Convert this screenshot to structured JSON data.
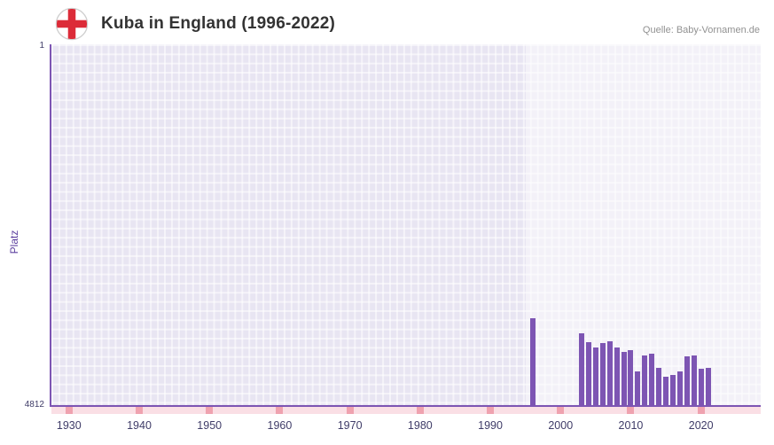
{
  "header": {
    "title": "Kuba in England (1996-2022)",
    "source": "Quelle: Baby-Vornamen.de",
    "flag_icon": "england-flag-icon"
  },
  "chart_data": {
    "type": "bar",
    "title": "Kuba in England (1996-2022)",
    "xlabel": "",
    "ylabel": "Platz",
    "y_axis": {
      "top_label": "1",
      "bottom_label": "4812",
      "min": 1,
      "max": 4812,
      "inverted": true
    },
    "x_domain": [
      1927.5,
      2028.5
    ],
    "x_ticks": [
      "1930",
      "1940",
      "1950",
      "1960",
      "1970",
      "1980",
      "1990",
      "2000",
      "2010",
      "2020"
    ],
    "x_tick_years": [
      1930,
      1940,
      1950,
      1960,
      1970,
      1980,
      1990,
      2000,
      2010,
      2020
    ],
    "highlight_band_start": 1995,
    "grid": true,
    "legend": false,
    "series": [
      {
        "year": 1996,
        "rank": 3656
      },
      {
        "year": 2003,
        "rank": 3855
      },
      {
        "year": 2004,
        "rank": 3971
      },
      {
        "year": 2005,
        "rank": 4041
      },
      {
        "year": 2006,
        "rank": 3983
      },
      {
        "year": 2007,
        "rank": 3960
      },
      {
        "year": 2008,
        "rank": 4041
      },
      {
        "year": 2009,
        "rank": 4100
      },
      {
        "year": 2010,
        "rank": 4076
      },
      {
        "year": 2011,
        "rank": 4368
      },
      {
        "year": 2012,
        "rank": 4147
      },
      {
        "year": 2013,
        "rank": 4123
      },
      {
        "year": 2014,
        "rank": 4310
      },
      {
        "year": 2015,
        "rank": 4438
      },
      {
        "year": 2016,
        "rank": 4415
      },
      {
        "year": 2017,
        "rank": 4368
      },
      {
        "year": 2018,
        "rank": 4158
      },
      {
        "year": 2019,
        "rank": 4155
      },
      {
        "year": 2020,
        "rank": 4330
      },
      {
        "year": 2021,
        "rank": 4310
      }
    ],
    "colors": {
      "bar": "#7d55b3",
      "axis": "#7d55b3",
      "plot_background": "#e8e5f2",
      "grid_line": "#ffffff",
      "highlight_band": "#f4f2fa",
      "strip_background": "#fadfe5",
      "strip_tick": "#efa2af",
      "tick_label": "#3f3c68",
      "ylabel_color": "#5b3e9e",
      "flag_red": "#dc2b38"
    }
  }
}
